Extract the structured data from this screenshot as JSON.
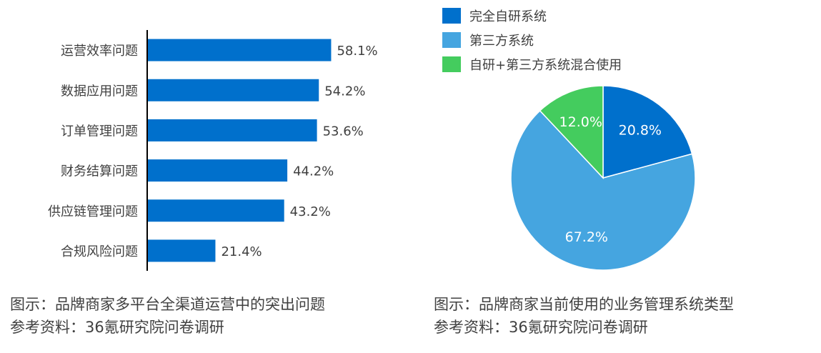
{
  "chart_data": [
    {
      "type": "bar",
      "orientation": "horizontal",
      "categories": [
        "运营效率问题",
        "数据应用问题",
        "订单管理问题",
        "财务结算问题",
        "供应链管理问题",
        "合规风险问题"
      ],
      "values": [
        58.1,
        54.2,
        53.6,
        44.2,
        43.2,
        21.4
      ],
      "value_labels": [
        "58.1%",
        "54.2%",
        "53.6%",
        "44.2%",
        "43.2%",
        "21.4%"
      ],
      "xlim": [
        0,
        100
      ],
      "grid": false,
      "color": "#0070CC"
    },
    {
      "type": "pie",
      "labels": [
        "完全自研系统",
        "第三方系统",
        "自研+第三方系统混合使用"
      ],
      "values": [
        20.8,
        67.2,
        12.0
      ],
      "value_labels": [
        "20.8%",
        "67.2%",
        "12.0%"
      ],
      "colors": [
        "#0070CC",
        "#45A5E0",
        "#44CC5E"
      ],
      "legend": "top-left"
    }
  ],
  "captions": {
    "left": {
      "title": "图示：品牌商家多平台全渠道运营中的突出问题",
      "source": "参考资料：36氪研究院问卷调研"
    },
    "right": {
      "title": "图示：品牌商家当前使用的业务管理系统类型",
      "source": "参考资料：36氪研究院问卷调研"
    }
  }
}
